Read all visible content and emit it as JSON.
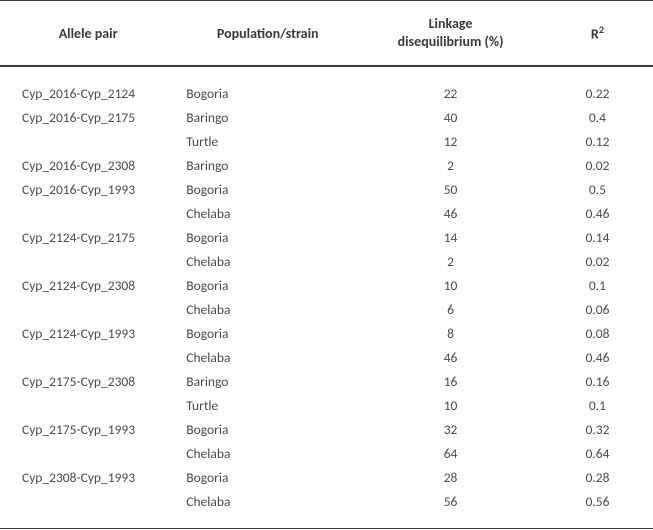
{
  "table": {
    "headers": {
      "allele_pair": "Allele pair",
      "population": "Population/strain",
      "linkage_line1": "Linkage",
      "linkage_line2": "disequilibrium (%)",
      "r2_prefix": "R",
      "r2_sup": "2"
    },
    "rows": [
      {
        "allele": "Cyp_2016-Cyp_2124",
        "pop": "Bogoria",
        "ld": "22",
        "r2": "0.22"
      },
      {
        "allele": "Cyp_2016-Cyp_2175",
        "pop": "Baringo",
        "ld": "40",
        "r2": "0.4"
      },
      {
        "allele": "",
        "pop": "Turtle",
        "ld": "12",
        "r2": "0.12"
      },
      {
        "allele": "Cyp_2016-Cyp_2308",
        "pop": "Baringo",
        "ld": "2",
        "r2": "0.02"
      },
      {
        "allele": "Cyp_2016-Cyp_1993",
        "pop": "Bogoria",
        "ld": "50",
        "r2": "0.5"
      },
      {
        "allele": "",
        "pop": "Chelaba",
        "ld": "46",
        "r2": "0.46"
      },
      {
        "allele": "Cyp_2124-Cyp_2175",
        "pop": "Bogoria",
        "ld": "14",
        "r2": "0.14"
      },
      {
        "allele": "",
        "pop": "Chelaba",
        "ld": "2",
        "r2": "0.02"
      },
      {
        "allele": "Cyp_2124-Cyp_2308",
        "pop": "Bogoria",
        "ld": "10",
        "r2": "0.1"
      },
      {
        "allele": "",
        "pop": "Chelaba",
        "ld": "6",
        "r2": "0.06"
      },
      {
        "allele": "Cyp_2124-Cyp_1993",
        "pop": "Bogoria",
        "ld": "8",
        "r2": "0.08"
      },
      {
        "allele": "",
        "pop": "Chelaba",
        "ld": "46",
        "r2": "0.46"
      },
      {
        "allele": "Cyp_2175-Cyp_2308",
        "pop": "Baringo",
        "ld": "16",
        "r2": "0.16"
      },
      {
        "allele": "",
        "pop": "Turtle",
        "ld": "10",
        "r2": "0.1"
      },
      {
        "allele": "Cyp_2175-Cyp_1993",
        "pop": "Bogoria",
        "ld": "32",
        "r2": "0.32"
      },
      {
        "allele": "",
        "pop": "Chelaba",
        "ld": "64",
        "r2": "0.64"
      },
      {
        "allele": "Cyp_2308-Cyp_1993",
        "pop": "Bogoria",
        "ld": "28",
        "r2": "0.28"
      },
      {
        "allele": "",
        "pop": "Chelaba",
        "ld": "56",
        "r2": "0.56"
      }
    ],
    "styling": {
      "text_color": "#4a4a4a",
      "header_color": "#3a3a3a",
      "border_color": "#3a3a3a",
      "background_color": "#ffffff",
      "font_family": "Calibri",
      "header_fontsize": 14,
      "body_fontsize": 13.5,
      "col_widths_pct": [
        27,
        28,
        28,
        17
      ],
      "col_align": [
        "left",
        "left",
        "center",
        "center"
      ]
    }
  }
}
